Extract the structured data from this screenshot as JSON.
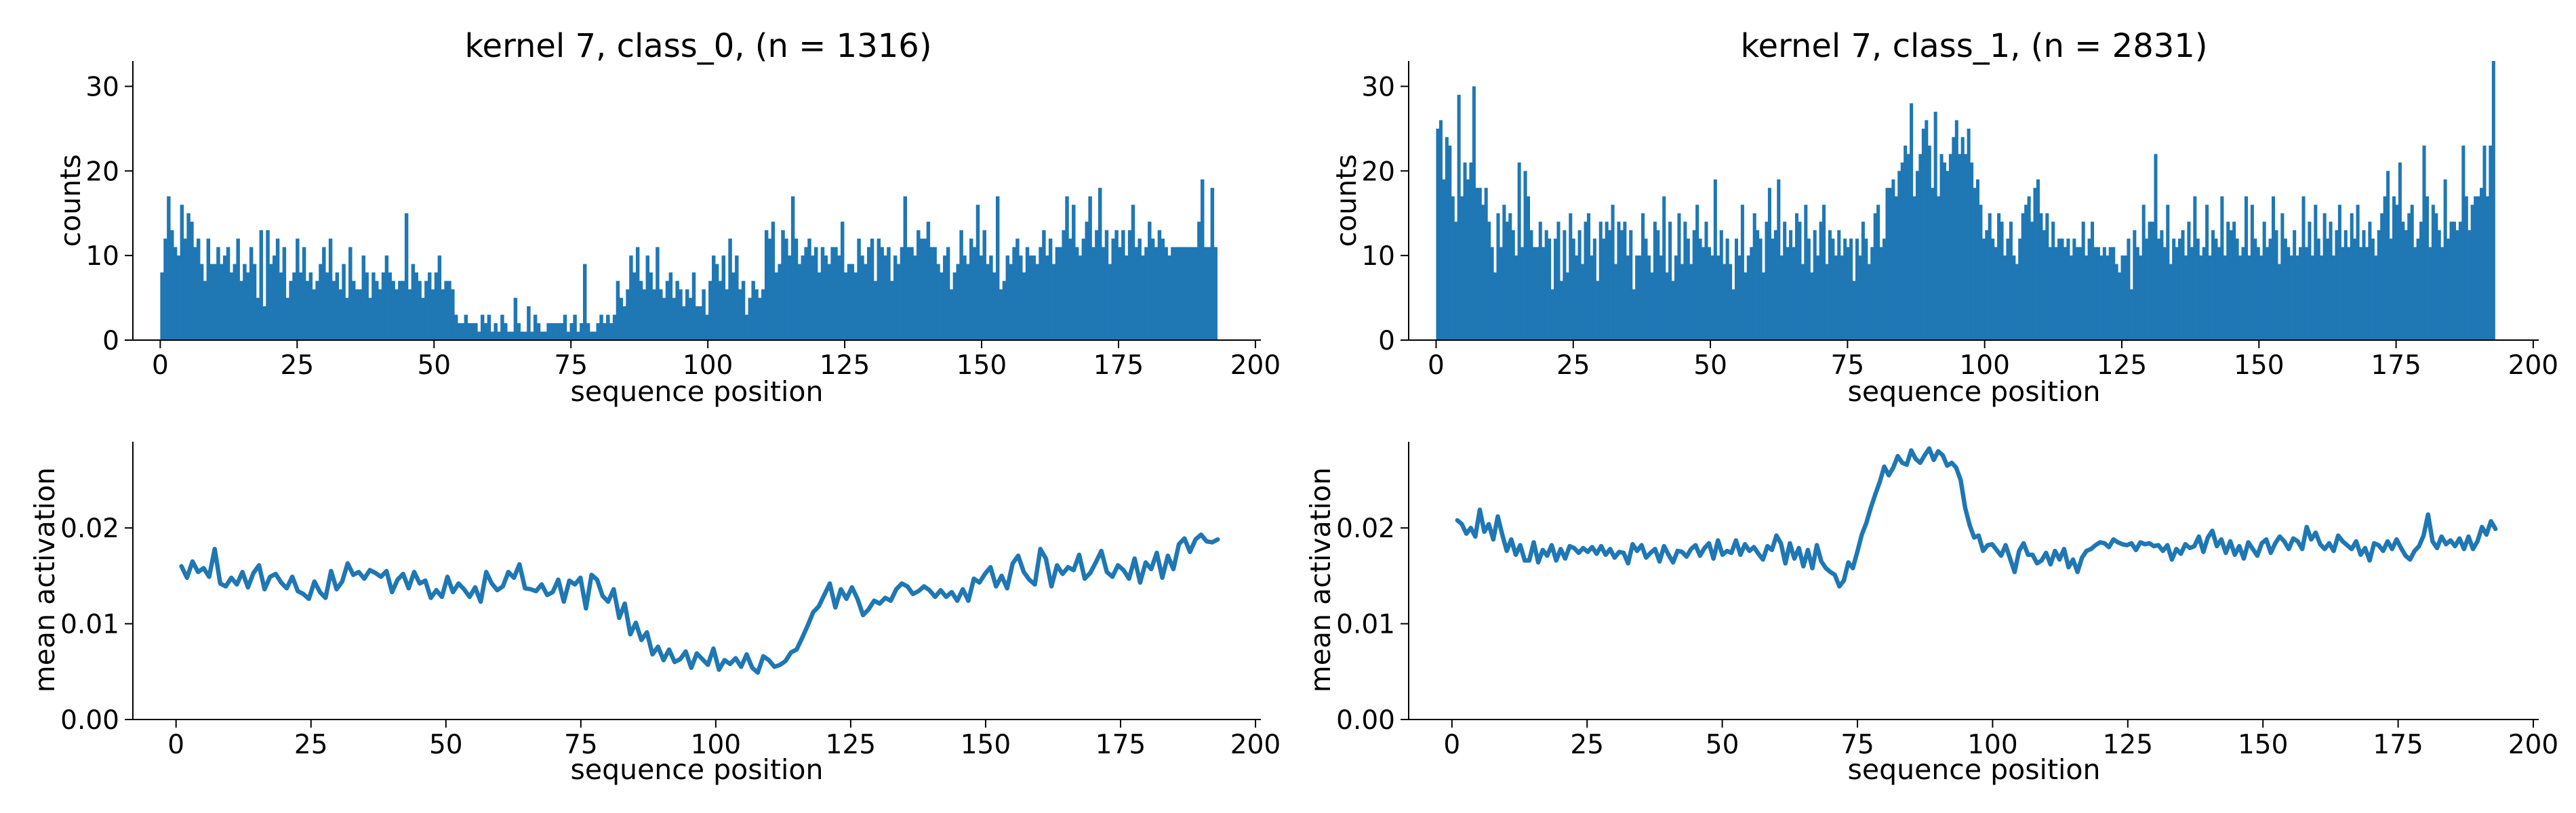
{
  "figure": {
    "rows": 2,
    "cols": 2,
    "bar_color": "#1f77b4",
    "line_color": "#1f77b4",
    "grid": false
  },
  "chart_data": [
    {
      "type": "bar",
      "title": "kernel 7, class_0, (n = 1316)",
      "xlabel": "sequence position",
      "ylabel": "counts",
      "xlim": [
        -5,
        201
      ],
      "ylim": [
        0,
        33
      ],
      "xticks": [
        0,
        25,
        50,
        75,
        100,
        125,
        150,
        175,
        200
      ],
      "yticks": [
        0,
        10,
        20,
        30
      ],
      "x_start": 0,
      "values": [
        8,
        12,
        17,
        13,
        11,
        10,
        16,
        12,
        15,
        14,
        11,
        12,
        9,
        7,
        12,
        9,
        9,
        11,
        9,
        10,
        11,
        8,
        9,
        12,
        7,
        9,
        8,
        11,
        9,
        5,
        13,
        4,
        13,
        9,
        10,
        12,
        8,
        11,
        5,
        7,
        8,
        12,
        8,
        11,
        7,
        8,
        6,
        7,
        9,
        11,
        8,
        12,
        7,
        8,
        6,
        9,
        5,
        11,
        7,
        6,
        6,
        10,
        8,
        5,
        8,
        7,
        6,
        8,
        10,
        8,
        7,
        6,
        7,
        7,
        15,
        6,
        9,
        8,
        7,
        5,
        7,
        8,
        6,
        8,
        10,
        6,
        7,
        7,
        6,
        3,
        2,
        2,
        3,
        2,
        2,
        2,
        1,
        3,
        2,
        3,
        1,
        2,
        1,
        3,
        2,
        1,
        1,
        5,
        2,
        1,
        1,
        4,
        1,
        3,
        2,
        1,
        1,
        2,
        2,
        2,
        2,
        2,
        3,
        1,
        2,
        3,
        1,
        2,
        9,
        2,
        1,
        1,
        2,
        3,
        2,
        3,
        2,
        3,
        7,
        5,
        4,
        6,
        10,
        8,
        11,
        7,
        6,
        10,
        8,
        6,
        11,
        6,
        5,
        7,
        8,
        5,
        7,
        6,
        4,
        6,
        5,
        8,
        4,
        4,
        6,
        3,
        7,
        10,
        9,
        7,
        10,
        6,
        12,
        8,
        10,
        6,
        7,
        3,
        5,
        7,
        6,
        5,
        6,
        13,
        12,
        14,
        8,
        9,
        13,
        12,
        10,
        17,
        12,
        9,
        10,
        11,
        12,
        10,
        11,
        8,
        11,
        10,
        9,
        11,
        11,
        10,
        14,
        8,
        9,
        9,
        8,
        12,
        10,
        9,
        11,
        12,
        7,
        12,
        11,
        10,
        11,
        7,
        10,
        9,
        11,
        17,
        11,
        11,
        10,
        13,
        12,
        12,
        14,
        11,
        11,
        9,
        8,
        10,
        11,
        6,
        8,
        9,
        13,
        10,
        9,
        12,
        11,
        16,
        10,
        13,
        9,
        10,
        8,
        17,
        6,
        7,
        10,
        9,
        11,
        12,
        10,
        8,
        11,
        10,
        10,
        9,
        11,
        13,
        10,
        12,
        9,
        11,
        11,
        13,
        17,
        12,
        16,
        11,
        10,
        12,
        14,
        17,
        11,
        13,
        18,
        11,
        13,
        9,
        12,
        13,
        11,
        13,
        10,
        13,
        16,
        11,
        12,
        10,
        11,
        14,
        12,
        11,
        13,
        12,
        11,
        10,
        11,
        11,
        11,
        11,
        11,
        11,
        11,
        11,
        14,
        19,
        11,
        11,
        18,
        11
      ]
    },
    {
      "type": "bar",
      "title": "kernel 7, class_1, (n = 2831)",
      "xlabel": "sequence position",
      "ylabel": "counts",
      "xlim": [
        -5,
        201
      ],
      "ylim": [
        0,
        33
      ],
      "xticks": [
        0,
        25,
        50,
        75,
        100,
        125,
        150,
        175,
        200
      ],
      "yticks": [
        0,
        10,
        20,
        30
      ],
      "x_start": 0,
      "values": [
        25,
        26,
        19,
        24,
        23,
        17,
        14,
        29,
        17,
        21,
        19,
        21,
        30,
        18,
        18,
        16,
        18,
        14,
        11,
        8,
        15,
        11,
        16,
        14,
        15,
        13,
        10,
        21,
        11,
        20,
        17,
        13,
        11,
        11,
        14,
        11,
        13,
        12,
        6,
        12,
        14,
        7,
        13,
        8,
        15,
        12,
        10,
        13,
        9,
        14,
        15,
        10,
        12,
        7,
        14,
        12,
        14,
        13,
        16,
        9,
        14,
        13,
        14,
        10,
        13,
        6,
        10,
        10,
        15,
        12,
        10,
        8,
        14,
        13,
        10,
        17,
        8,
        14,
        7,
        10,
        15,
        9,
        14,
        12,
        9,
        13,
        16,
        12,
        11,
        14,
        11,
        10,
        19,
        10,
        13,
        9,
        12,
        9,
        6,
        12,
        10,
        16,
        8,
        10,
        11,
        15,
        13,
        12,
        8,
        14,
        18,
        12,
        13,
        19,
        10,
        14,
        11,
        13,
        11,
        15,
        14,
        9,
        16,
        12,
        8,
        13,
        10,
        14,
        16,
        9,
        13,
        12,
        10,
        13,
        10,
        12,
        11,
        12,
        7,
        12,
        10,
        14,
        12,
        9,
        11,
        15,
        16,
        11,
        12,
        18,
        18,
        19,
        17,
        20,
        21,
        23,
        22,
        28,
        17,
        20,
        22,
        25,
        26,
        23,
        18,
        27,
        17,
        22,
        21,
        20,
        22,
        24,
        26,
        22,
        24,
        22,
        25,
        21,
        18,
        19,
        16,
        12,
        13,
        15,
        12,
        11,
        15,
        14,
        10,
        12,
        14,
        10,
        9,
        12,
        15,
        16,
        17,
        14,
        18,
        19,
        15,
        13,
        15,
        11,
        14,
        11,
        12,
        12,
        11,
        12,
        10,
        12,
        11,
        11,
        14,
        10,
        12,
        14,
        11,
        11,
        10,
        11,
        10,
        11,
        11,
        9,
        8,
        10,
        10,
        12,
        6,
        13,
        11,
        10,
        16,
        12,
        14,
        14,
        22,
        12,
        13,
        11,
        16,
        9,
        12,
        11,
        12,
        13,
        10,
        14,
        11,
        17,
        12,
        10,
        11,
        16,
        10,
        13,
        12,
        11,
        17,
        10,
        14,
        13,
        14,
        12,
        10,
        11,
        17,
        10,
        16,
        12,
        11,
        10,
        14,
        11,
        12,
        17,
        13,
        9,
        15,
        12,
        11,
        10,
        13,
        10,
        11,
        17,
        11,
        14,
        10,
        16,
        12,
        10,
        15,
        12,
        14,
        10,
        13,
        16,
        11,
        13,
        11,
        15,
        12,
        16,
        11,
        13,
        11,
        14,
        12,
        10,
        13,
        15,
        17,
        20,
        12,
        17,
        16,
        21,
        14,
        13,
        15,
        16,
        11,
        12,
        14,
        23,
        17,
        11,
        16,
        15,
        13,
        11,
        19,
        12,
        14,
        14,
        13,
        14,
        23,
        17,
        13,
        16,
        17,
        17,
        18,
        23,
        17,
        23,
        33
      ]
    },
    {
      "type": "line",
      "title": "",
      "xlabel": "sequence position",
      "ylabel": "mean activation",
      "xlim": [
        -8,
        201
      ],
      "ylim": [
        0,
        0.029
      ],
      "xticks": [
        0,
        25,
        50,
        75,
        100,
        125,
        150,
        175,
        200
      ],
      "yticks": [
        0,
        0.01,
        0.02
      ],
      "ytick_labels": [
        "0.00",
        "0.01",
        "0.02"
      ],
      "x_start": 1,
      "values": [
        0.016,
        0.0148,
        0.0165,
        0.0154,
        0.0158,
        0.0149,
        0.0178,
        0.0142,
        0.0139,
        0.0148,
        0.0141,
        0.0154,
        0.0138,
        0.0153,
        0.0161,
        0.0136,
        0.0149,
        0.0152,
        0.0143,
        0.0137,
        0.0149,
        0.0134,
        0.0131,
        0.0126,
        0.0144,
        0.0133,
        0.0127,
        0.0155,
        0.0136,
        0.0144,
        0.0163,
        0.0151,
        0.0154,
        0.0147,
        0.0156,
        0.0153,
        0.0149,
        0.0155,
        0.0133,
        0.0146,
        0.0152,
        0.0137,
        0.0154,
        0.0142,
        0.0145,
        0.0127,
        0.0135,
        0.0128,
        0.0149,
        0.0133,
        0.0142,
        0.0136,
        0.0128,
        0.0138,
        0.0123,
        0.0154,
        0.0142,
        0.0135,
        0.0139,
        0.0154,
        0.0148,
        0.0162,
        0.0137,
        0.0136,
        0.0134,
        0.0141,
        0.013,
        0.0133,
        0.0146,
        0.0123,
        0.0145,
        0.0141,
        0.0148,
        0.0116,
        0.0151,
        0.0146,
        0.0129,
        0.0123,
        0.0136,
        0.0106,
        0.0121,
        0.0089,
        0.0101,
        0.0083,
        0.0091,
        0.0068,
        0.0076,
        0.0062,
        0.0073,
        0.006,
        0.0063,
        0.0071,
        0.0054,
        0.0069,
        0.0063,
        0.0057,
        0.0074,
        0.0052,
        0.0062,
        0.0058,
        0.0064,
        0.0055,
        0.0068,
        0.0054,
        0.0049,
        0.0066,
        0.0062,
        0.0055,
        0.0057,
        0.0061,
        0.007,
        0.0073,
        0.0085,
        0.0098,
        0.0112,
        0.0118,
        0.013,
        0.0142,
        0.0117,
        0.0136,
        0.0126,
        0.0138,
        0.0126,
        0.0109,
        0.0115,
        0.0124,
        0.0121,
        0.0127,
        0.0124,
        0.0136,
        0.0142,
        0.0139,
        0.0131,
        0.0134,
        0.0139,
        0.0135,
        0.0128,
        0.0135,
        0.0128,
        0.0133,
        0.0124,
        0.0136,
        0.0124,
        0.0147,
        0.0143,
        0.0152,
        0.0159,
        0.0139,
        0.015,
        0.0137,
        0.0163,
        0.0171,
        0.0154,
        0.0146,
        0.0141,
        0.0178,
        0.0168,
        0.0139,
        0.0161,
        0.0152,
        0.0159,
        0.0156,
        0.0172,
        0.0147,
        0.0153,
        0.0164,
        0.0176,
        0.0154,
        0.0149,
        0.0161,
        0.0156,
        0.0147,
        0.0168,
        0.0143,
        0.0164,
        0.0157,
        0.0174,
        0.0148,
        0.0171,
        0.0157,
        0.0183,
        0.0189,
        0.0175,
        0.0188,
        0.0193,
        0.0186,
        0.0185,
        0.0188
      ]
    },
    {
      "type": "line",
      "title": "",
      "xlabel": "sequence position",
      "ylabel": "mean activation",
      "xlim": [
        -8,
        201
      ],
      "ylim": [
        0,
        0.029
      ],
      "xticks": [
        0,
        25,
        50,
        75,
        100,
        125,
        150,
        175,
        200
      ],
      "yticks": [
        0,
        0.01,
        0.02
      ],
      "ytick_labels": [
        "0.00",
        "0.01",
        "0.02"
      ],
      "x_start": 1,
      "values": [
        0.0208,
        0.0204,
        0.0194,
        0.02,
        0.0191,
        0.0219,
        0.0196,
        0.0204,
        0.0188,
        0.0212,
        0.0193,
        0.0176,
        0.0188,
        0.0172,
        0.0182,
        0.0166,
        0.0166,
        0.0185,
        0.0164,
        0.0177,
        0.0171,
        0.0182,
        0.0166,
        0.0178,
        0.0168,
        0.0181,
        0.0179,
        0.0174,
        0.0179,
        0.0175,
        0.018,
        0.0173,
        0.0181,
        0.0172,
        0.0178,
        0.0169,
        0.0175,
        0.0174,
        0.0163,
        0.0183,
        0.0176,
        0.0182,
        0.0169,
        0.0174,
        0.0178,
        0.0165,
        0.0181,
        0.0172,
        0.0164,
        0.0176,
        0.0175,
        0.017,
        0.0178,
        0.0182,
        0.0171,
        0.0179,
        0.0184,
        0.0168,
        0.0187,
        0.0172,
        0.0176,
        0.0174,
        0.0187,
        0.0172,
        0.0183,
        0.0176,
        0.018,
        0.0173,
        0.0167,
        0.0181,
        0.0177,
        0.0192,
        0.0184,
        0.0163,
        0.0184,
        0.0168,
        0.0179,
        0.016,
        0.0177,
        0.0158,
        0.0182,
        0.0165,
        0.0158,
        0.0154,
        0.0151,
        0.0139,
        0.0145,
        0.0164,
        0.0158,
        0.0175,
        0.0193,
        0.0205,
        0.0221,
        0.0235,
        0.0248,
        0.0264,
        0.0255,
        0.0263,
        0.0275,
        0.0268,
        0.0266,
        0.0281,
        0.0272,
        0.0268,
        0.0276,
        0.0283,
        0.0271,
        0.028,
        0.0276,
        0.0265,
        0.0268,
        0.0263,
        0.025,
        0.0221,
        0.0203,
        0.019,
        0.0192,
        0.0176,
        0.0182,
        0.0183,
        0.0177,
        0.0171,
        0.0182,
        0.0168,
        0.0154,
        0.0176,
        0.0184,
        0.0172,
        0.0172,
        0.0163,
        0.0166,
        0.0174,
        0.0162,
        0.0176,
        0.0167,
        0.0178,
        0.0159,
        0.0167,
        0.0154,
        0.0169,
        0.0176,
        0.0178,
        0.0182,
        0.0185,
        0.0184,
        0.018,
        0.0188,
        0.0185,
        0.0183,
        0.0182,
        0.0184,
        0.0177,
        0.0185,
        0.0183,
        0.0184,
        0.0181,
        0.0182,
        0.0176,
        0.0182,
        0.0167,
        0.0178,
        0.0173,
        0.0183,
        0.0179,
        0.0181,
        0.0191,
        0.0175,
        0.019,
        0.0197,
        0.0181,
        0.0188,
        0.0174,
        0.0186,
        0.0172,
        0.0181,
        0.0168,
        0.0185,
        0.0178,
        0.0171,
        0.0184,
        0.0188,
        0.0174,
        0.0184,
        0.0191,
        0.0186,
        0.0178,
        0.0189,
        0.0186,
        0.0178,
        0.0201,
        0.0188,
        0.0195,
        0.0183,
        0.0178,
        0.0184,
        0.0176,
        0.0192,
        0.0186,
        0.0182,
        0.0178,
        0.0186,
        0.0172,
        0.0179,
        0.0166,
        0.0184,
        0.0182,
        0.0176,
        0.0186,
        0.0178,
        0.0188,
        0.0179,
        0.0171,
        0.0167,
        0.0176,
        0.0181,
        0.0192,
        0.0214,
        0.0186,
        0.0179,
        0.0191,
        0.0183,
        0.0187,
        0.0181,
        0.0189,
        0.0178,
        0.0191,
        0.0178,
        0.0186,
        0.0201,
        0.0193,
        0.0207,
        0.0199
      ]
    }
  ]
}
